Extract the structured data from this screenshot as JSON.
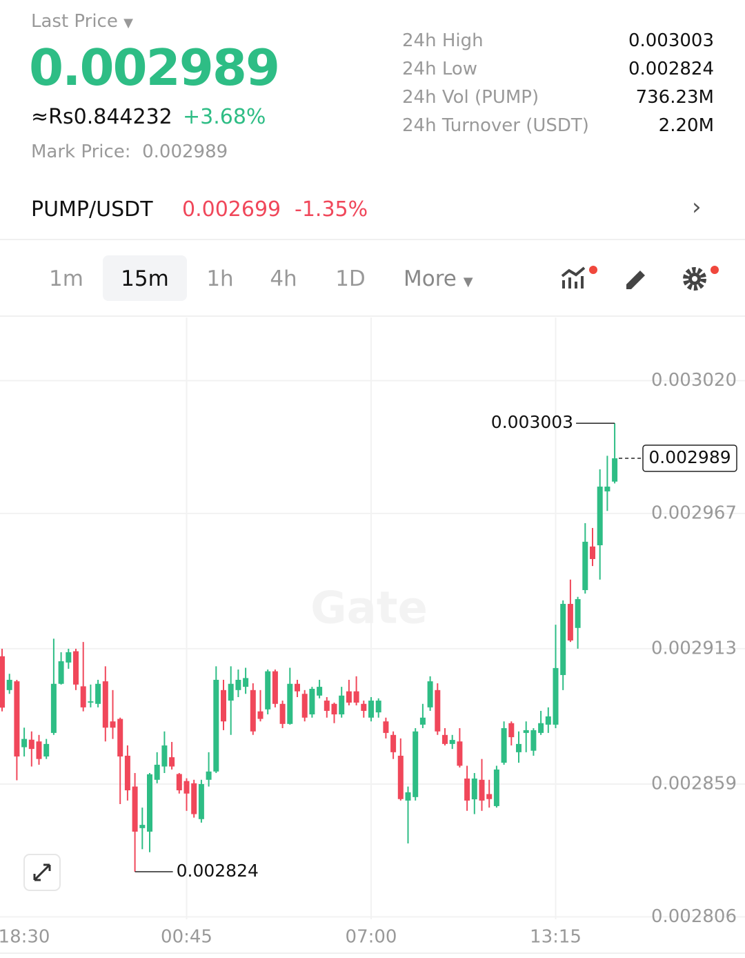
{
  "header": {
    "last_price_label": "Last Price",
    "last_price": "0.002989",
    "fiat_price": "≈Rs0.844232",
    "change": "+3.68%",
    "mark_price_label": "Mark Price:",
    "mark_price": "0.002989",
    "stats": [
      {
        "label": "24h High",
        "value": "0.003003"
      },
      {
        "label": "24h Low",
        "value": "0.002824"
      },
      {
        "label": "24h Vol (PUMP)",
        "value": "736.23M"
      },
      {
        "label": "24h Turnover (USDT)",
        "value": "2.20M"
      }
    ],
    "pair": "PUMP/USDT",
    "pair_price": "0.002699",
    "pair_change": "-1.35%"
  },
  "toolbar": {
    "intervals": [
      "1m",
      "15m",
      "1h",
      "4h",
      "1D"
    ],
    "active": 1,
    "more": "More"
  },
  "chart_data": {
    "type": "candlestick",
    "watermark": "Gate",
    "up_color": "#2ebd85",
    "down_color": "#f0475a",
    "grid": true,
    "categories": [
      "18:30",
      null,
      null,
      null,
      null,
      null,
      null,
      null,
      null,
      null,
      null,
      null,
      null,
      null,
      null,
      null,
      null,
      null,
      null,
      null,
      null,
      null,
      null,
      null,
      null,
      "00:45",
      null,
      null,
      null,
      null,
      null,
      null,
      null,
      null,
      null,
      null,
      null,
      null,
      null,
      null,
      null,
      null,
      null,
      null,
      null,
      null,
      null,
      null,
      null,
      null,
      "07:00",
      null,
      null,
      null,
      null,
      null,
      null,
      null,
      null,
      null,
      null,
      null,
      null,
      null,
      null,
      null,
      null,
      null,
      null,
      null,
      null,
      null,
      null,
      null,
      null,
      "13:15",
      null,
      null,
      null,
      null,
      null,
      null,
      null,
      null
    ],
    "open": [
      0.00291,
      0.0028965,
      0.0029,
      0.0028737,
      0.0028767,
      0.002876,
      0.00287,
      0.0028794,
      0.002899,
      0.0029075,
      0.002912,
      0.002898,
      0.0028915,
      0.002891,
      0.0029,
      0.002884,
      0.002885,
      0.0028703,
      0.002858,
      0.0028414,
      0.00284,
      0.0028607,
      0.002866,
      0.0028697,
      0.002863,
      0.0028602,
      0.0028593,
      0.002845,
      0.0028607,
      0.002864,
      0.0028965,
      0.0028923,
      0.0028965,
      0.0028978,
      0.0028965,
      0.002888,
      0.0028888,
      0.002904,
      0.002891,
      0.002883,
      0.002899,
      0.002895,
      0.0028868,
      0.0028943,
      0.0028923,
      0.002891,
      0.0028868,
      0.002896,
      0.002896,
      0.002891,
      0.0028855,
      0.0028876,
      0.002884,
      0.0028786,
      0.0028703,
      0.0028524,
      0.0028538,
      0.0028827,
      0.0028896,
      0.0028965,
      0.0028786,
      0.002875,
      0.002876,
      0.0028612,
      0.0028529,
      0.0028607,
      0.002855,
      0.0028502,
      0.0028675,
      0.0028833,
      0.0028717,
      0.0028794,
      0.0028723,
      0.0028794,
      0.0028827,
      0.0028827,
      0.0029025,
      0.0029309,
      0.0029213,
      0.0029364,
      0.0029538,
      0.0029543,
      0.0029758,
      0.0029797
    ],
    "high": [
      0.002913,
      0.002903,
      0.0029006,
      0.0028815,
      0.00288,
      0.0028786,
      0.002877,
      0.002917,
      0.0029116,
      0.002913,
      0.002913,
      0.0029157,
      0.0028987,
      0.0029006,
      0.002906,
      0.0028965,
      0.0028855,
      0.0028744,
      0.0028634,
      0.0028496,
      0.0028634,
      0.0028717,
      0.00288,
      0.0028758,
      0.0028634,
      0.0028613,
      0.0028607,
      0.0028607,
      0.0028717,
      0.002906,
      0.0029006,
      0.002906,
      0.0029047,
      0.0029054,
      0.0028992,
      0.0028965,
      0.0029047,
      0.0029047,
      0.0028923,
      0.0029054,
      0.0029006,
      0.0028965,
      0.0028978,
      0.0029006,
      0.0028937,
      0.0028915,
      0.0028978,
      0.0029006,
      0.002902,
      0.0028923,
      0.0028937,
      0.0028932,
      0.0028855,
      0.00288,
      0.0028772,
      0.002858,
      0.0028813,
      0.002891,
      0.002902,
      0.0028992,
      0.0028813,
      0.0028786,
      0.0028813,
      0.0028663,
      0.0028634,
      0.002869,
      0.0028607,
      0.0028663,
      0.002884,
      0.002884,
      0.00288,
      0.002884,
      0.0028813,
      0.0028882,
      0.0028896,
      0.0029226,
      0.0029323,
      0.0029406,
      0.0029337,
      0.0029631,
      0.0029612,
      0.0029846,
      0.00299,
      0.003003
    ],
    "low": [
      0.002888,
      0.002895,
      0.0028605,
      0.00287,
      0.002866,
      0.0028667,
      0.002869,
      0.0028786,
      0.0028987,
      0.002905,
      0.0028965,
      0.002888,
      0.0028896,
      0.0028896,
      0.002876,
      0.002877,
      0.002851,
      0.0028524,
      0.002824,
      0.002833,
      0.0028318,
      0.0028593,
      0.0028634,
      0.0028648,
      0.0028552,
      0.0028483,
      0.0028456,
      0.0028436,
      0.002858,
      0.0028634,
      0.0028805,
      0.0028786,
      0.0028937,
      0.002895,
      0.0028786,
      0.002884,
      0.0028868,
      0.0028896,
      0.0028813,
      0.0028827,
      0.0028937,
      0.002884,
      0.0028855,
      0.0028932,
      0.0028855,
      0.0028833,
      0.0028855,
      0.0028904,
      0.0028904,
      0.0028855,
      0.002884,
      0.0028855,
      0.0028772,
      0.002869,
      0.0028524,
      0.0028353,
      0.0028524,
      0.0028813,
      0.0028882,
      0.0028786,
      0.0028744,
      0.002873,
      0.0028656,
      0.0028483,
      0.002847,
      0.0028483,
      0.0028496,
      0.0028496,
      0.0028667,
      0.0028744,
      0.0028675,
      0.0028717,
      0.0028703,
      0.0028786,
      0.0028794,
      0.0028813,
      0.0028965,
      0.0029157,
      0.002913,
      0.002935,
      0.002946,
      0.0029406,
      0.002968,
      0.002979
    ],
    "close": [
      0.0028895,
      0.0029006,
      0.00287,
      0.002877,
      0.002873,
      0.002869,
      0.002875,
      0.002899,
      0.002908,
      0.0029116,
      0.0028987,
      0.0028896,
      0.002892,
      0.002899,
      0.0028815,
      0.0028815,
      0.00287,
      0.0028565,
      0.00284,
      0.0028427,
      0.0028629,
      0.0028667,
      0.0028744,
      0.002866,
      0.0028565,
      0.0028552,
      0.002847,
      0.002859,
      0.002864,
      0.0029006,
      0.002884,
      0.002899,
      0.0029006,
      0.0029013,
      0.00288,
      0.002885,
      0.002904,
      0.002891,
      0.002883,
      0.002899,
      0.002896,
      0.0028855,
      0.002897,
      0.0028978,
      0.0028882,
      0.0028868,
      0.0028943,
      0.0028915,
      0.0028915,
      0.0028882,
      0.0028923,
      0.0028923,
      0.0028794,
      0.0028717,
      0.002853,
      0.0028557,
      0.00288,
      0.0028855,
      0.0029,
      0.00288,
      0.002875,
      0.0028766,
      0.0028663,
      0.0028524,
      0.0028612,
      0.0028524,
      0.002853,
      0.0028648,
      0.0028813,
      0.0028777,
      0.002875,
      0.0028805,
      0.0028805,
      0.0028833,
      0.002886,
      0.0029053,
      0.0029309,
      0.0029163,
      0.0029328,
      0.0029557,
      0.0029488,
      0.0029777,
      0.0029777,
      0.002989
    ],
    "ylim": [
      0.002805,
      0.0030452
    ],
    "yticks": [
      {
        "value": 0.00302,
        "label": "0.003020"
      },
      0.002967,
      0.002913,
      0.002859,
      0.002806
    ],
    "max_marker": 0.003003,
    "min_marker": 0.002824,
    "last_marker": 0.002989
  }
}
